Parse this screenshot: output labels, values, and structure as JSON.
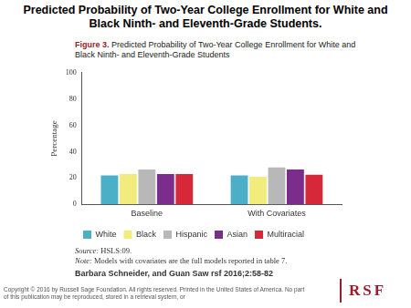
{
  "slide_title": "Predicted Probability of Two-Year College Enrollment for White and Black Ninth- and Eleventh-Grade Students.",
  "figure_label": "Figure 3.",
  "figure_title": "Predicted Probability of Two-Year College Enrollment for White and Black Ninth- and Eleventh-Grade Students",
  "chart_data": {
    "type": "bar",
    "y_label": "Percentage",
    "categories": [
      "Baseline",
      "With Covariates"
    ],
    "series": [
      {
        "name": "White",
        "color": "#4bafc8",
        "values": [
          22,
          22
        ]
      },
      {
        "name": "Black",
        "color": "#f2ec7c",
        "values": [
          23,
          21
        ]
      },
      {
        "name": "Hispanic",
        "color": "#b8b8b8",
        "values": [
          26.5,
          28
        ]
      },
      {
        "name": "Asian",
        "color": "#7b2d8b",
        "values": [
          23,
          26.5
        ]
      },
      {
        "name": "Multiracial",
        "color": "#d62839",
        "values": [
          23,
          22.5
        ]
      }
    ],
    "ylim": [
      0,
      100
    ],
    "yticks": [
      0,
      20,
      40,
      60,
      80,
      100
    ],
    "grid": false,
    "legend": "bottom"
  },
  "source": {
    "label": "Source:",
    "text": "HSLS:09."
  },
  "note": {
    "label": "Note:",
    "text": "Models with covariates are the full models reported in table 7."
  },
  "citation": "Barbara Schneider, and Guan Saw rsf 2016;2:58-82",
  "copyright": "Copyright © 2016 by Russell Sage Foundation. All rights reserved. Printed in the United States of America. No part of this publication may be reproduced, stored in a retrieval system, or",
  "logo": "RSF"
}
